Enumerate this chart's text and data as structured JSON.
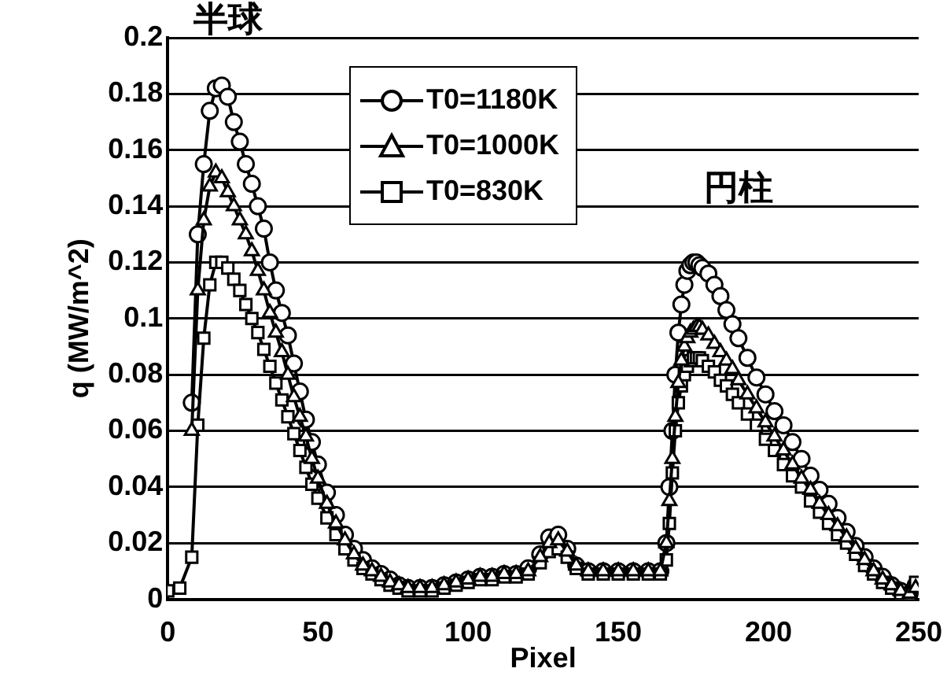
{
  "chart_data": {
    "type": "line",
    "xlabel": "Pixel",
    "ylabel": "q (MW/m^2)",
    "annotations": [
      "半球",
      "円柱"
    ],
    "x": [
      0,
      4,
      8,
      10,
      12,
      14,
      16,
      18,
      20,
      22,
      24,
      26,
      28,
      30,
      32,
      34,
      36,
      38,
      40,
      42,
      44,
      46,
      48,
      50,
      53,
      56,
      59,
      62,
      65,
      68,
      71,
      74,
      77,
      80,
      84,
      88,
      92,
      96,
      100,
      104,
      108,
      112,
      116,
      120,
      124,
      127,
      130,
      133,
      136,
      140,
      145,
      150,
      155,
      160,
      164,
      166,
      167,
      168,
      169,
      170,
      171,
      172,
      173,
      174,
      175,
      176,
      177,
      178,
      180,
      182,
      184,
      186,
      188,
      190,
      193,
      196,
      199,
      202,
      205,
      208,
      211,
      214,
      217,
      220,
      223,
      226,
      229,
      232,
      235,
      238,
      241,
      244,
      247,
      249
    ],
    "xlim": [
      0,
      250
    ],
    "xticks": [
      0,
      50,
      100,
      150,
      200,
      250
    ],
    "ylim": [
      0,
      0.2
    ],
    "yticks": [
      0,
      0.02,
      0.04,
      0.06,
      0.08,
      0.1,
      0.12,
      0.14,
      0.16,
      0.18,
      0.2
    ],
    "grid": "y",
    "legend": "top",
    "series": [
      {
        "name": "T0=1180K",
        "color": "#000000",
        "marker": "circle",
        "values": [
          null,
          null,
          0.07,
          0.13,
          0.155,
          0.174,
          0.182,
          0.183,
          0.179,
          0.17,
          0.163,
          0.155,
          0.148,
          0.14,
          0.132,
          0.12,
          0.11,
          0.102,
          0.094,
          0.084,
          0.074,
          0.064,
          0.056,
          0.048,
          0.038,
          0.03,
          0.023,
          0.018,
          0.014,
          0.011,
          0.009,
          0.007,
          0.005,
          0.004,
          0.004,
          0.004,
          0.005,
          0.006,
          0.007,
          0.008,
          0.008,
          0.009,
          0.009,
          0.011,
          0.016,
          0.022,
          0.023,
          0.018,
          0.012,
          0.01,
          0.01,
          0.01,
          0.01,
          0.01,
          0.01,
          0.02,
          0.04,
          0.06,
          0.08,
          0.095,
          0.105,
          0.112,
          0.117,
          0.119,
          0.12,
          0.12,
          0.119,
          0.118,
          0.116,
          0.112,
          0.108,
          0.103,
          0.098,
          0.093,
          0.086,
          0.079,
          0.073,
          0.067,
          0.062,
          0.056,
          0.05,
          0.044,
          0.039,
          0.034,
          0.029,
          0.024,
          0.019,
          0.015,
          0.011,
          0.008,
          0.005,
          0.003,
          0.002,
          0.005
        ]
      },
      {
        "name": "T0=1000K",
        "color": "#000000",
        "marker": "triangle",
        "values": [
          null,
          null,
          0.06,
          0.11,
          0.135,
          0.147,
          0.152,
          0.15,
          0.145,
          0.14,
          0.135,
          0.13,
          0.124,
          0.117,
          0.11,
          0.102,
          0.095,
          0.088,
          0.08,
          0.072,
          0.065,
          0.058,
          0.05,
          0.043,
          0.034,
          0.027,
          0.021,
          0.016,
          0.012,
          0.01,
          0.008,
          0.006,
          0.005,
          0.004,
          0.004,
          0.004,
          0.005,
          0.006,
          0.007,
          0.008,
          0.008,
          0.009,
          0.009,
          0.01,
          0.015,
          0.02,
          0.021,
          0.017,
          0.012,
          0.01,
          0.01,
          0.01,
          0.01,
          0.01,
          0.01,
          0.02,
          0.035,
          0.05,
          0.065,
          0.077,
          0.085,
          0.09,
          0.093,
          0.095,
          0.096,
          0.097,
          0.097,
          0.096,
          0.094,
          0.091,
          0.088,
          0.085,
          0.082,
          0.078,
          0.073,
          0.068,
          0.063,
          0.058,
          0.053,
          0.048,
          0.043,
          0.039,
          0.034,
          0.03,
          0.026,
          0.022,
          0.018,
          0.014,
          0.01,
          0.007,
          0.005,
          0.003,
          0.002,
          0.004
        ]
      },
      {
        "name": "T0=830K",
        "color": "#000000",
        "marker": "square",
        "values": [
          0.003,
          0.004,
          0.015,
          0.062,
          0.093,
          0.112,
          0.12,
          0.12,
          0.118,
          0.114,
          0.11,
          0.105,
          0.1,
          0.095,
          0.089,
          0.083,
          0.077,
          0.071,
          0.065,
          0.059,
          0.053,
          0.047,
          0.041,
          0.036,
          0.029,
          0.023,
          0.018,
          0.014,
          0.011,
          0.009,
          0.007,
          0.005,
          0.004,
          0.003,
          0.003,
          0.003,
          0.004,
          0.005,
          0.006,
          0.007,
          0.007,
          0.008,
          0.008,
          0.009,
          0.013,
          0.017,
          0.018,
          0.015,
          0.011,
          0.009,
          0.009,
          0.009,
          0.009,
          0.009,
          0.009,
          0.014,
          0.027,
          0.045,
          0.06,
          0.07,
          0.076,
          0.08,
          0.083,
          0.085,
          0.086,
          0.086,
          0.086,
          0.085,
          0.083,
          0.081,
          0.078,
          0.076,
          0.073,
          0.07,
          0.066,
          0.062,
          0.057,
          0.053,
          0.048,
          0.044,
          0.04,
          0.035,
          0.031,
          0.027,
          0.023,
          0.02,
          0.016,
          0.012,
          0.009,
          0.006,
          0.004,
          0.002,
          0.002,
          0.006
        ]
      }
    ]
  }
}
